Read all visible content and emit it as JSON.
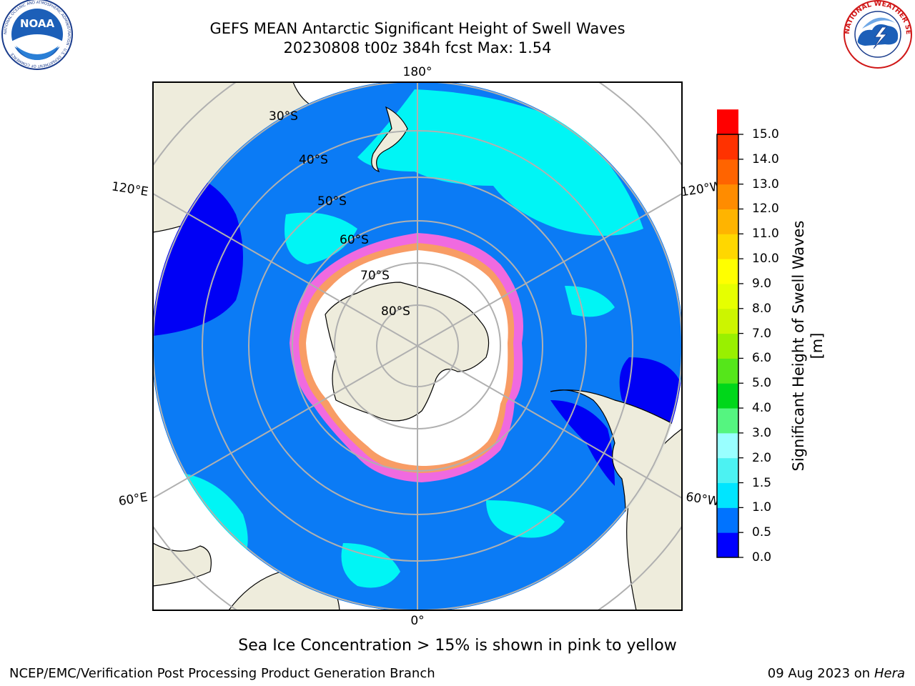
{
  "header": {
    "title_line1": "GEFS MEAN Antarctic Significant Height of Swell Waves",
    "title_line2_run": "20230808 t00z 384h fcst",
    "title_line2_max": "Max: 1.54"
  },
  "logos": {
    "left_agency": "NOAA",
    "left_ring_text": "NATIONAL OCEANIC AND ATMOSPHERIC ADMINISTRATION · U.S. DEPARTMENT OF COMMERCE",
    "right_ring_text": "NATIONAL WEATHER SERVICE"
  },
  "map": {
    "projection": "south-polar-stereographic",
    "longitude_labels": [
      "180°",
      "120°E",
      "120°W",
      "60°E",
      "60°W",
      "0°"
    ],
    "latitude_labels": [
      "30°S",
      "40°S",
      "50°S",
      "60°S",
      "70°S",
      "80°S"
    ],
    "colors": {
      "ocean_low": "#0b7bf5",
      "ocean_very_low": "#0000f5",
      "ocean_mid": "#00f5f5",
      "land": "#eeecdc",
      "ice_edge": "#f06ae0",
      "ice_core": "#ffffff",
      "grid": "#b0b0b0"
    }
  },
  "colorbar": {
    "label": "Significant Height of Swell Waves [m]",
    "ticks": [
      "15.0",
      "14.0",
      "13.0",
      "12.0",
      "11.0",
      "10.0",
      "9.0",
      "8.0",
      "7.0",
      "6.0",
      "5.0",
      "4.0",
      "3.0",
      "2.0",
      "1.5",
      "1.0",
      "0.5",
      "0.0"
    ],
    "colors": [
      "#0000ff",
      "#0073ff",
      "#00e5ff",
      "#4cf2f2",
      "#99ffff",
      "#55f580",
      "#00d71a",
      "#55e61a",
      "#99f000",
      "#ccf500",
      "#e6ff00",
      "#ffff00",
      "#ffd700",
      "#ffb400",
      "#ff8c00",
      "#ff6400",
      "#ff3200",
      "#ff0000"
    ]
  },
  "footer": {
    "note": "Sea Ice Concentration > 15% is shown in pink to yellow",
    "credit": "NCEP/EMC/Verification Post Processing Product Generation Branch",
    "date": "09 Aug 2023 on",
    "system": "Hera"
  }
}
